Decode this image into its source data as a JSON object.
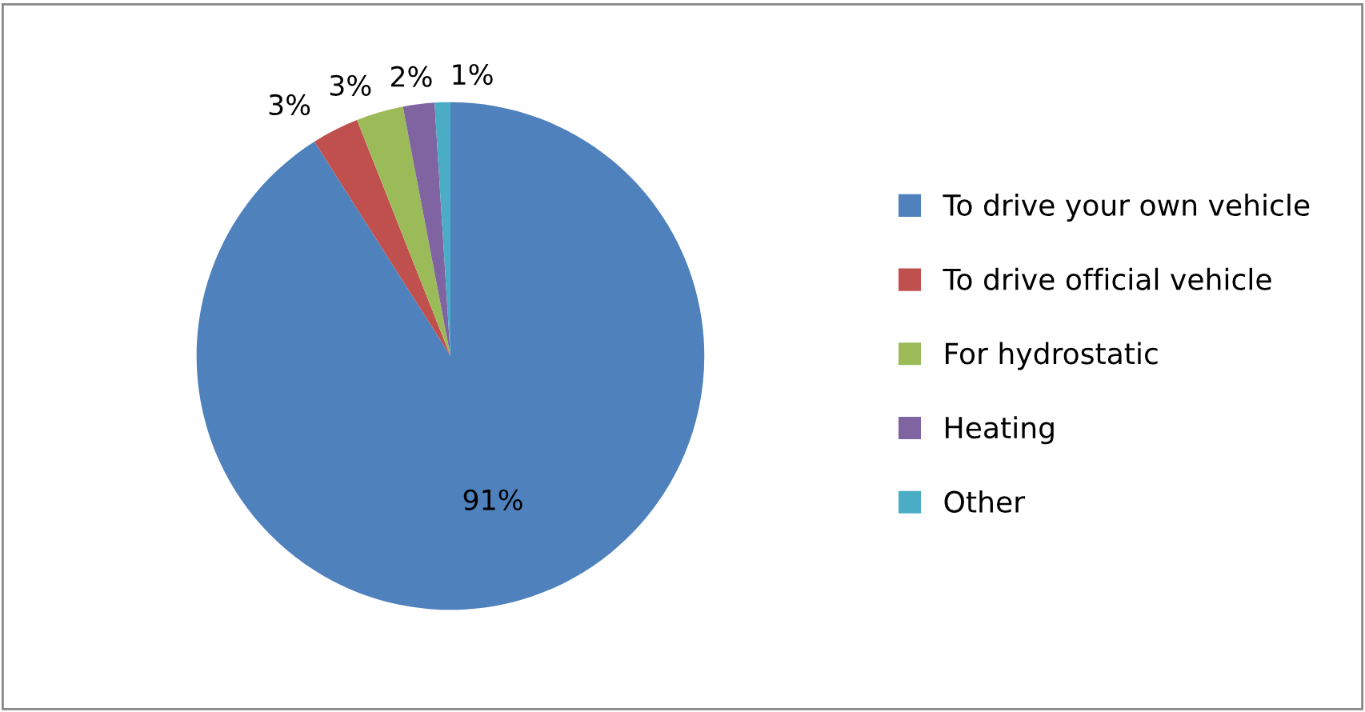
{
  "chart_data": {
    "type": "pie",
    "categories": [
      "To drive your own vehicle",
      "To drive official vehicle",
      "For hydrostatic",
      "Heating",
      "Other"
    ],
    "values": [
      91,
      3,
      3,
      2,
      1
    ],
    "colors": [
      "#4f81bd",
      "#c0504d",
      "#9bbb59",
      "#8064a2",
      "#4bacc6"
    ],
    "value_labels": [
      "91%",
      "3%",
      "3%",
      "2%",
      "1%"
    ],
    "legend": "right"
  }
}
